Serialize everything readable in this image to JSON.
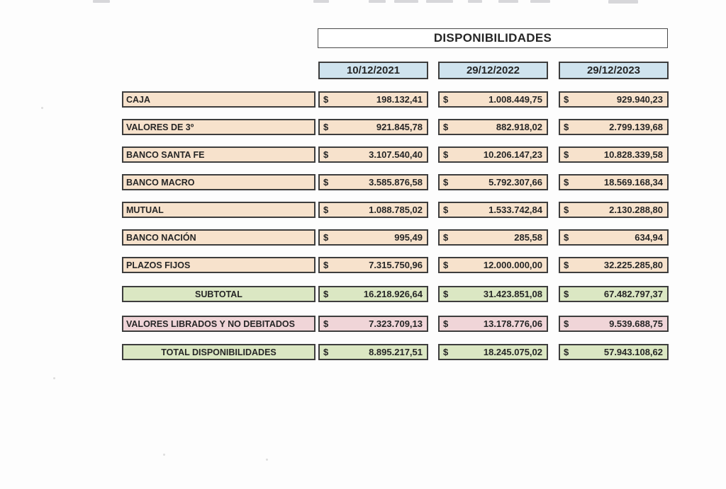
{
  "header": {
    "title": "DISPONIBILIDADES"
  },
  "table": {
    "columns": [
      "10/12/2021",
      "29/12/2022",
      "29/12/2023"
    ],
    "currency_symbol": "$",
    "rows": [
      {
        "label": "CAJA",
        "type": "item",
        "values": [
          "198.132,41",
          "1.008.449,75",
          "929.940,23"
        ]
      },
      {
        "label": "VALORES DE 3º",
        "type": "item",
        "values": [
          "921.845,78",
          "882.918,02",
          "2.799.139,68"
        ]
      },
      {
        "label": "BANCO SANTA FE",
        "type": "item",
        "values": [
          "3.107.540,40",
          "10.206.147,23",
          "10.828.339,58"
        ]
      },
      {
        "label": "BANCO MACRO",
        "type": "item",
        "values": [
          "3.585.876,58",
          "5.792.307,66",
          "18.569.168,34"
        ]
      },
      {
        "label": "MUTUAL",
        "type": "item",
        "values": [
          "1.088.785,02",
          "1.533.742,84",
          "2.130.288,80"
        ]
      },
      {
        "label": "BANCO NACIÓN",
        "type": "item",
        "values": [
          "995,49",
          "285,58",
          "634,94"
        ]
      },
      {
        "label": "PLAZOS FIJOS",
        "type": "item",
        "values": [
          "7.315.750,96",
          "12.000.000,00",
          "32.225.285,80"
        ]
      },
      {
        "label": "SUBTOTAL",
        "type": "subtotal",
        "values": [
          "16.218.926,64",
          "31.423.851,08",
          "67.482.797,37"
        ]
      },
      {
        "label": "VALORES LIBRADOS Y NO DEBITADOS",
        "type": "deduction",
        "values": [
          "7.323.709,13",
          "13.178.776,06",
          "9.539.688,75"
        ]
      },
      {
        "label": "TOTAL DISPONIBILIDADES",
        "type": "total",
        "values": [
          "8.895.217,51",
          "18.245.075,02",
          "57.943.108,62"
        ]
      }
    ]
  },
  "colors": {
    "item_fill": "#f7e2cc",
    "subtotal_fill": "#dbe7c3",
    "deduction_fill": "#f0d5d8",
    "total_fill": "#dbe7c3",
    "header_date_fill": "#cfe3ee",
    "border": "#3d3d3d",
    "text": "#262626"
  }
}
